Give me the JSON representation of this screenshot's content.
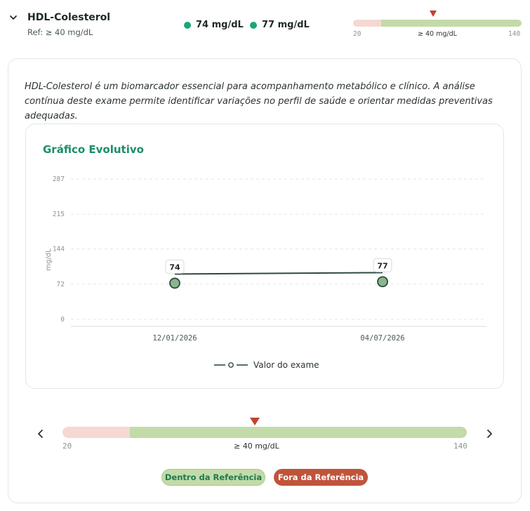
{
  "header": {
    "title": "HDL-Colesterol",
    "reference": "Ref: ≥ 40 mg/dL",
    "values": [
      "74 mg/dL",
      "77 mg/dL"
    ],
    "range": {
      "min": "20",
      "max": "140",
      "label": "≥ 40 mg/dL"
    }
  },
  "description": "HDL-Colesterol é um biomarcador essencial para acompanhamento metabólico e clínico. A análise contínua deste exame permite identificar variações no perfil de saúde e orientar medidas preventivas adequadas.",
  "chart_section": {
    "title": "Gráfico Evolutivo",
    "legend_label": "Valor do exame"
  },
  "chart_data": {
    "type": "line",
    "title": "Gráfico Evolutivo",
    "ylabel": "mg/dL",
    "xlabel": "",
    "x": [
      "12/01/2026",
      "04/07/2026"
    ],
    "series": [
      {
        "name": "Valor do exame",
        "values": [
          74,
          77
        ]
      }
    ],
    "data_labels": [
      "74",
      "77"
    ],
    "yticks": [
      0,
      72,
      144,
      215,
      287
    ],
    "ylim": [
      0,
      287
    ],
    "grid": true,
    "legend": "bottom-center"
  },
  "range_bar": {
    "min": "20",
    "max": "140",
    "label": "≥ 40 mg/dL",
    "range_min": 20,
    "range_max": 140,
    "threshold": 40,
    "marker_value": 77
  },
  "badges": {
    "in_range": "Dentro da Referência",
    "out_of_range": "Fora da Referência"
  },
  "colors": {
    "accent": "#1a8f63",
    "dot": "#1aa67a",
    "normal_fill": "#c2dba8",
    "low_fill": "#f6d8d3",
    "marker": "#c0432b",
    "line": "#2e4a42",
    "point": "#8bb58b",
    "out_badge": "#c0543a"
  },
  "icons": [
    "chevron-down-icon",
    "chevron-left-icon",
    "chevron-right-icon",
    "triangle-marker-icon"
  ]
}
